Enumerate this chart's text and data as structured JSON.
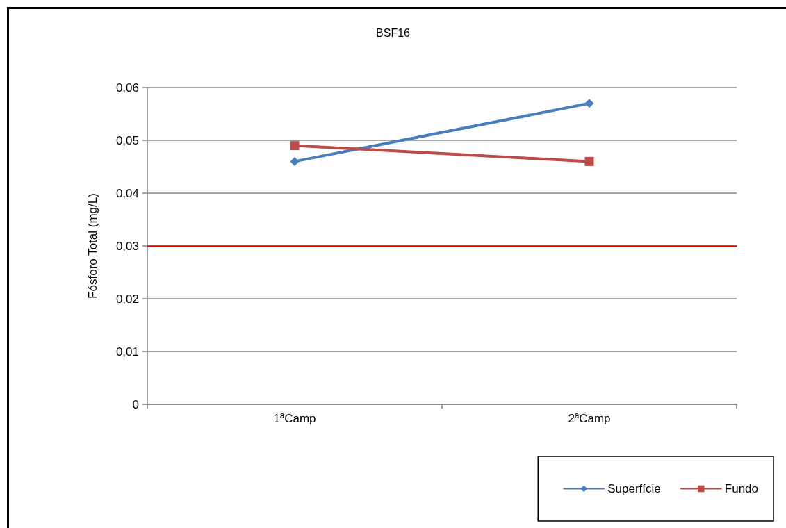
{
  "chart_data": {
    "type": "line",
    "title": "BSF16",
    "ylabel": "Fósforo Total (mg/L)",
    "categories": [
      "1ªCamp",
      "2ªCamp"
    ],
    "series": [
      {
        "name": "Superfície",
        "color": "#4a7ebb",
        "values": [
          0.046,
          0.057
        ],
        "marker": "diamond"
      },
      {
        "name": "Fundo",
        "color": "#be4b48",
        "values": [
          0.049,
          0.046
        ],
        "marker": "square"
      }
    ],
    "ylim": [
      0,
      0.06
    ],
    "yticks": [
      0,
      {
        "value": 0.01,
        "label": "0,01"
      },
      {
        "value": 0.02,
        "label": "0,02"
      },
      {
        "value": 0.03,
        "label": "0,03"
      },
      {
        "value": 0.04,
        "label": "0,04"
      },
      {
        "value": 0.05,
        "label": "0,05"
      },
      {
        "value": 0.06,
        "label": "0,06"
      }
    ],
    "ref_lines": [
      {
        "axis": "y",
        "value": 0.03,
        "color": "#ff0000"
      }
    ],
    "grid": "y",
    "legend": "bottom right",
    "line_style": "solid"
  }
}
